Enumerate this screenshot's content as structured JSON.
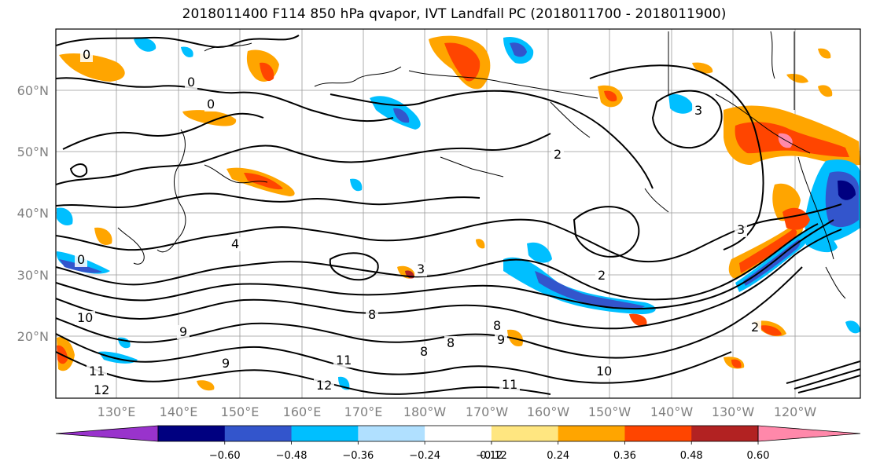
{
  "title": "2018011400 F114 850 hPa qvapor, IVT Landfall PC (2018011700 - 2018011900)",
  "latitude_labels": [
    "60°N",
    "50°N",
    "40°N",
    "30°N",
    "20°N"
  ],
  "longitude_labels": [
    "130°E",
    "140°E",
    "150°E",
    "160°E",
    "170°E",
    "180°W",
    "170°W",
    "160°W",
    "150°W",
    "140°W",
    "130°W",
    "120°W"
  ],
  "contour_labels": [
    "0",
    "0",
    "0",
    "3",
    "2",
    "4",
    "3",
    "2",
    "3",
    "0",
    "8",
    "10",
    "9",
    "8",
    "8",
    "9",
    "8",
    "11",
    "12",
    "11",
    "10",
    "12",
    "11",
    "9",
    "2"
  ],
  "colorbar": {
    "tick_labels": [
      "−0.60",
      "−0.48",
      "−0.36",
      "−0.24",
      "−0.12",
      "0.12",
      "0.24",
      "0.36",
      "0.48",
      "0.60"
    ],
    "colors": [
      "#9933cc",
      "#000080",
      "#3355cc",
      "#00bfff",
      "#b0e0ff",
      "#ffffff",
      "#ffe680",
      "#ffa500",
      "#ff4500",
      "#b22222",
      "#ff88aa"
    ]
  },
  "fill_colors": {
    "orange": "#ffa500",
    "red_orange": "#ff4500",
    "yellow": "#ffe680",
    "light_blue": "#b0e0ff",
    "blue": "#00bfff",
    "mid_blue": "#3355cc",
    "navy": "#000080",
    "dark_red": "#b22222",
    "pink": "#ff88aa"
  }
}
